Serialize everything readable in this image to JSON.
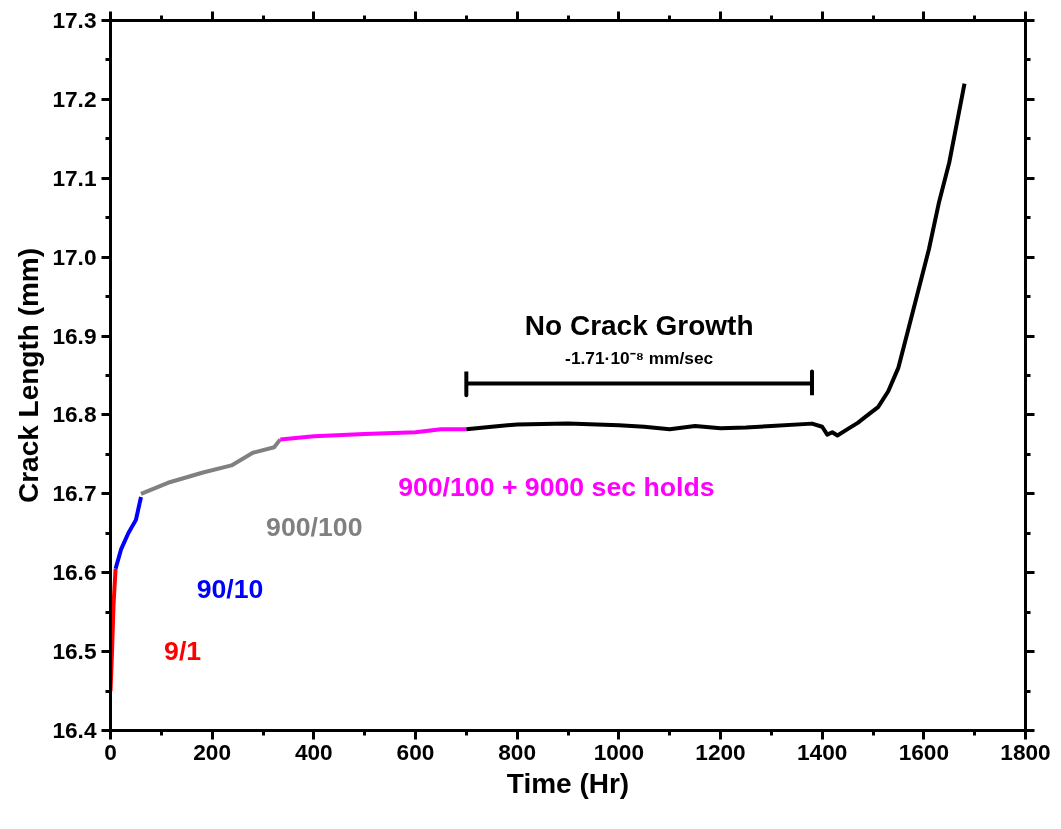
{
  "chart_data": {
    "type": "line",
    "xlabel": "Time (Hr)",
    "ylabel": "Crack Length (mm)",
    "xlim": [
      0,
      1800
    ],
    "xticks": [
      0,
      200,
      400,
      600,
      800,
      1000,
      1200,
      1400,
      1600,
      1800
    ],
    "ylim": [
      16.4,
      17.3
    ],
    "yticks": [
      16.4,
      16.5,
      16.6,
      16.7,
      16.8,
      16.9,
      {
        "value": 17,
        "label": "17.0"
      },
      17.1,
      17.2,
      17.3
    ],
    "grid": false,
    "marker": "none",
    "line_style": "solid",
    "series": [
      {
        "name": "9/1",
        "color": "#ff0000",
        "x": [
          0,
          3,
          6,
          10
        ],
        "values": [
          16.45,
          16.5,
          16.56,
          16.605
        ]
      },
      {
        "name": "90/10",
        "color": "#0000ff",
        "x": [
          10,
          21,
          35,
          50,
          60
        ],
        "values": [
          16.605,
          16.63,
          16.65,
          16.667,
          16.696
        ]
      },
      {
        "name": "900/100",
        "color": "#808080",
        "x": [
          60,
          113,
          182,
          238,
          280,
          322,
          334
        ],
        "values": [
          16.7,
          16.714,
          16.727,
          16.736,
          16.752,
          16.759,
          16.769
        ]
      },
      {
        "name": "900/100 + 9000 sec holds",
        "color": "#ff00ff",
        "x": [
          334,
          400,
          500,
          600,
          650,
          700
        ],
        "values": [
          16.769,
          16.773,
          16.776,
          16.778,
          16.782,
          16.782
        ]
      },
      {
        "color": "#000000",
        "x": [
          700,
          750,
          800,
          900,
          1000,
          1050,
          1100,
          1150,
          1200,
          1250,
          1300,
          1380,
          1400,
          1410,
          1420,
          1430,
          1450,
          1470,
          1490,
          1510,
          1530,
          1550,
          1570,
          1590,
          1610,
          1630,
          1650,
          1665,
          1680
        ],
        "values": [
          16.782,
          16.785,
          16.788,
          16.789,
          16.787,
          16.785,
          16.782,
          16.786,
          16.783,
          16.784,
          16.786,
          16.789,
          16.785,
          16.775,
          16.778,
          16.774,
          16.782,
          16.79,
          16.8,
          16.81,
          16.83,
          16.86,
          16.91,
          16.96,
          17.01,
          17.07,
          17.12,
          17.17,
          17.22
        ]
      },
      {
        "color": "#000000",
        "x": [
          700,
          700,
          700,
          1380,
          1380,
          1380
        ],
        "values": [
          16.855,
          16.825,
          16.84,
          16.84,
          16.855,
          16.825
        ]
      }
    ],
    "annotations": [
      {
        "text": "No Crack Growth",
        "x": 1040,
        "y": 16.84
      },
      {
        "text": "-1.71·10⁻⁸ mm/sec",
        "x": 1040,
        "y": 16.84
      }
    ]
  }
}
